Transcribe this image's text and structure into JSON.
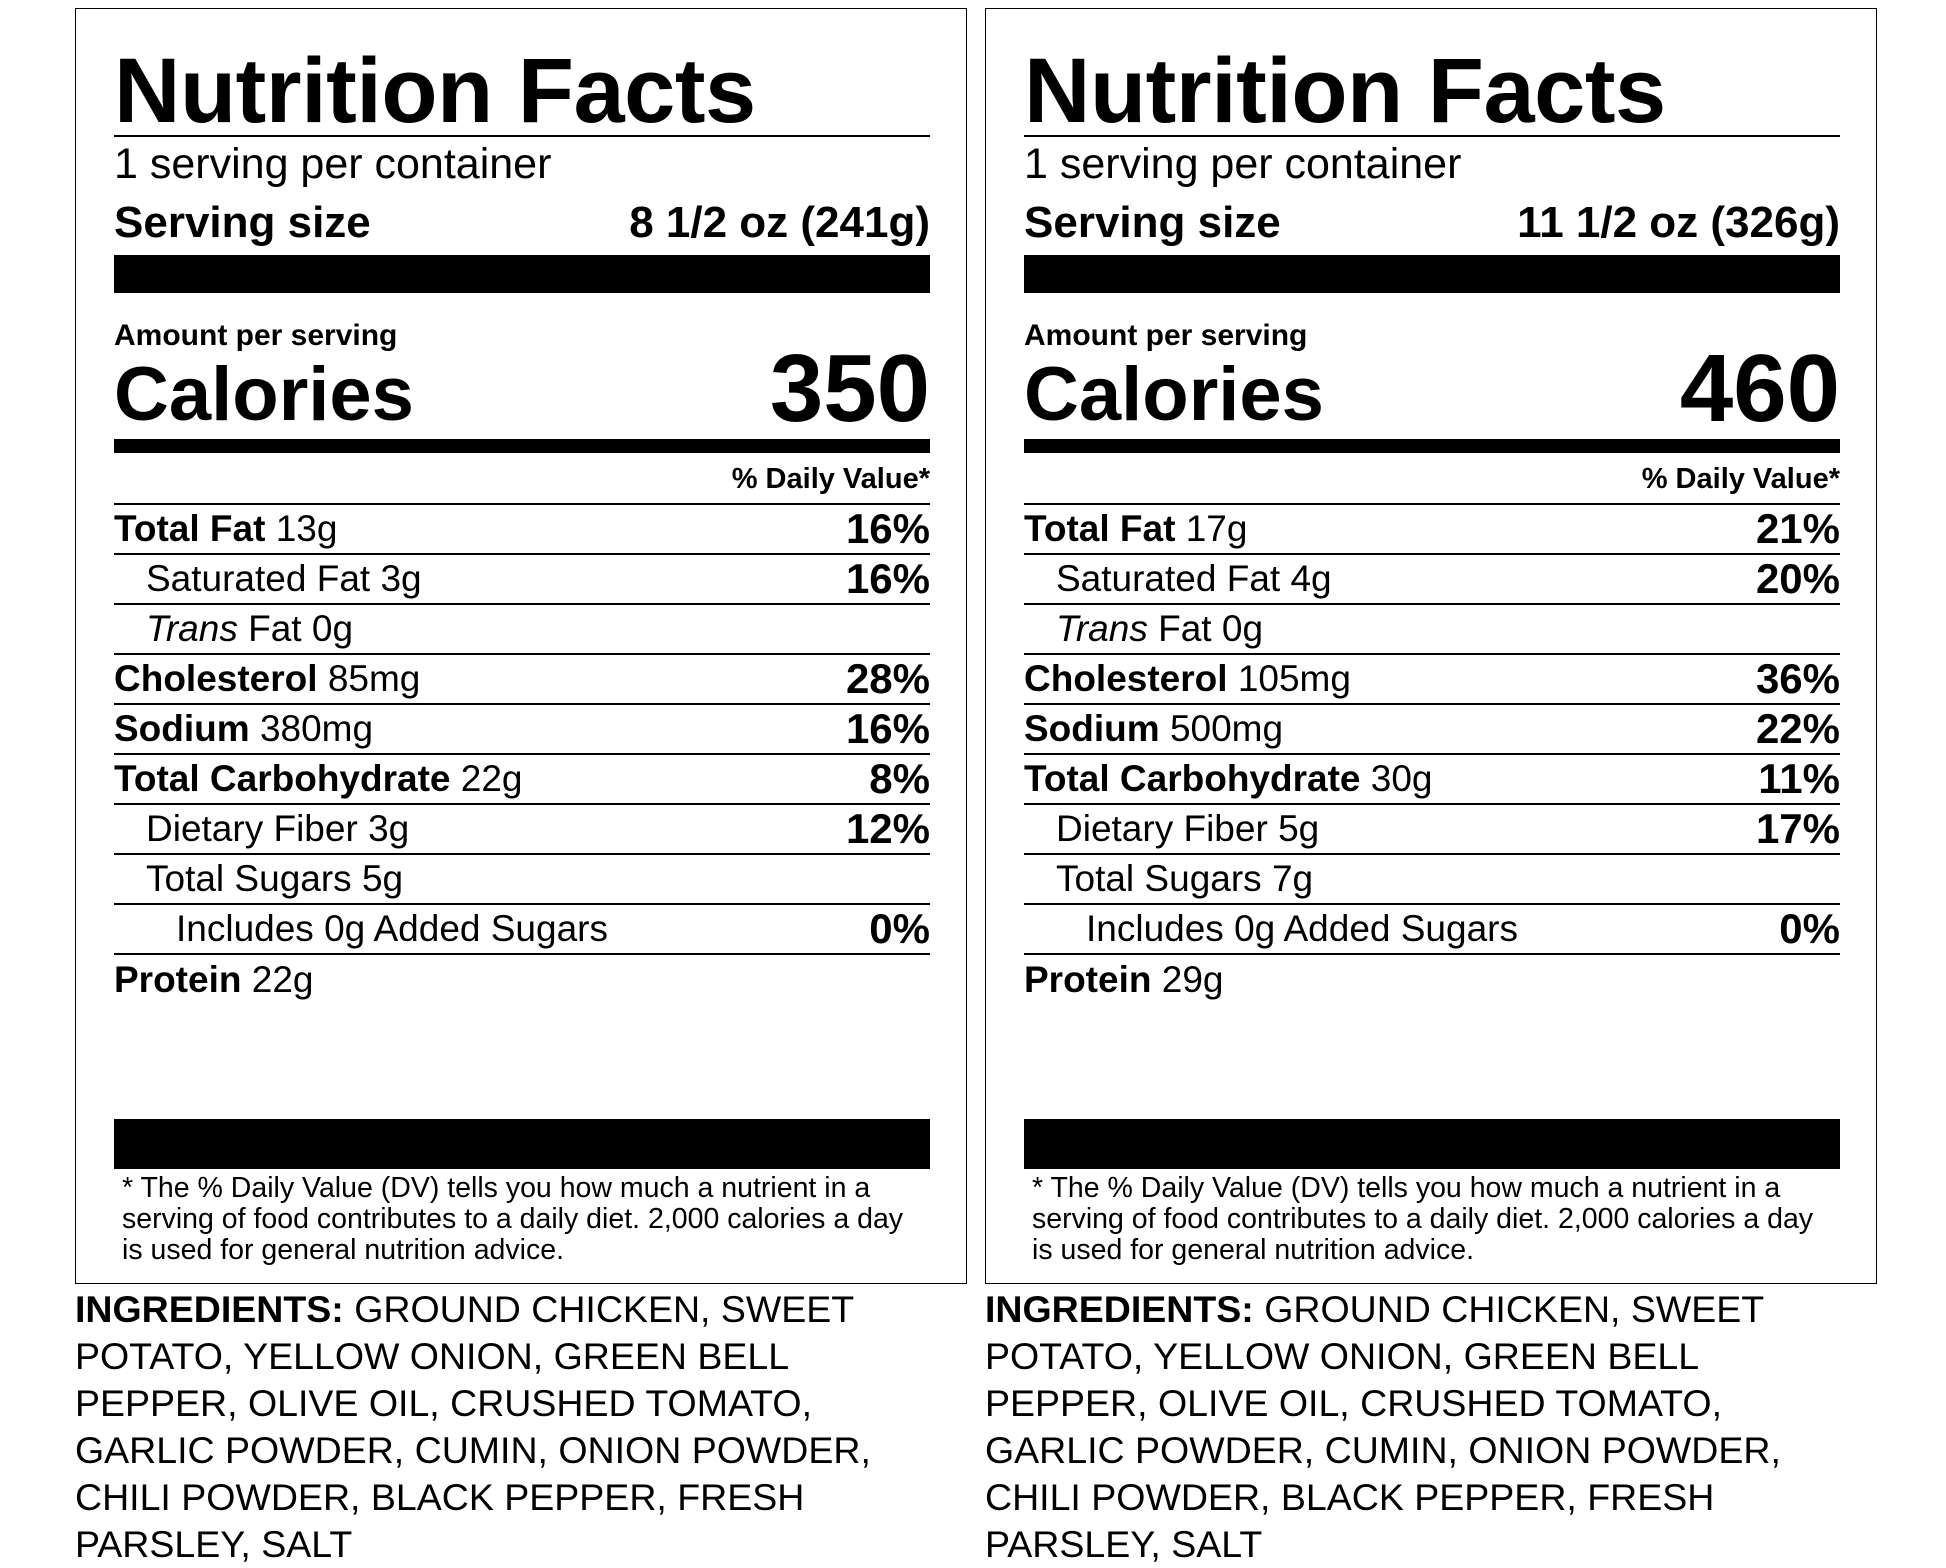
{
  "labels": [
    {
      "title": "Nutrition Facts",
      "servings_per_container": "1 serving per container",
      "serving_size_label": "Serving size",
      "serving_size_value": "8 1/2 oz (241g)",
      "amount_per_serving": "Amount per serving",
      "calories_label": "Calories",
      "calories_value": "350",
      "daily_value_header": "% Daily Value*",
      "nutrients": [
        {
          "bold": "Total Fat",
          "amount": "13g",
          "dv": "16%"
        },
        {
          "bold": "",
          "plain": "Saturated Fat",
          "amount": "3g",
          "dv": "16%"
        },
        {
          "italic": "Trans",
          "plain": "Fat",
          "amount": "0g",
          "dv": ""
        },
        {
          "bold": "Cholesterol",
          "amount": "85mg",
          "dv": "28%"
        },
        {
          "bold": "Sodium",
          "amount": "380mg",
          "dv": "16%"
        },
        {
          "bold": "Total Carbohydrate",
          "amount": "22g",
          "dv": "8%"
        },
        {
          "plain": "Dietary Fiber",
          "amount": "3g",
          "dv": "12%"
        },
        {
          "plain": "Total Sugars",
          "amount": "5g",
          "dv": ""
        },
        {
          "plain": "Includes 0g Added Sugars",
          "amount": "",
          "dv": "0%"
        },
        {
          "bold": "Protein",
          "amount": "22g",
          "dv": ""
        }
      ],
      "footnote": "* The % Daily Value (DV) tells you how much a nutrient in a serving of food contributes to a daily diet. 2,000 calories a day is used for general nutrition advice.",
      "ingredients_label": "INGREDIENTS:",
      "ingredients_text": "GROUND CHICKEN, SWEET POTATO, YELLOW ONION, GREEN BELL PEPPER, OLIVE OIL, CRUSHED TOMATO, GARLIC POWDER, CUMIN, ONION POWDER, CHILI POWDER, BLACK PEPPER, FRESH PARSLEY, SALT"
    },
    {
      "title": "Nutrition Facts",
      "servings_per_container": "1 serving per container",
      "serving_size_label": "Serving size",
      "serving_size_value": "11 1/2 oz (326g)",
      "amount_per_serving": "Amount per serving",
      "calories_label": "Calories",
      "calories_value": "460",
      "daily_value_header": "% Daily Value*",
      "nutrients": [
        {
          "bold": "Total Fat",
          "amount": "17g",
          "dv": "21%"
        },
        {
          "plain": "Saturated Fat",
          "amount": "4g",
          "dv": "20%"
        },
        {
          "italic": "Trans",
          "plain": "Fat",
          "amount": "0g",
          "dv": ""
        },
        {
          "bold": "Cholesterol",
          "amount": "105mg",
          "dv": "36%"
        },
        {
          "bold": "Sodium",
          "amount": "500mg",
          "dv": "22%"
        },
        {
          "bold": "Total Carbohydrate",
          "amount": "30g",
          "dv": "11%"
        },
        {
          "plain": "Dietary Fiber",
          "amount": "5g",
          "dv": "17%"
        },
        {
          "plain": "Total Sugars",
          "amount": "7g",
          "dv": ""
        },
        {
          "plain": "Includes 0g Added Sugars",
          "amount": "",
          "dv": "0%"
        },
        {
          "bold": "Protein",
          "amount": "29g",
          "dv": ""
        }
      ],
      "footnote": "* The % Daily Value (DV) tells you how much a nutrient in a serving of food contributes to a daily diet. 2,000 calories a day is used for general nutrition advice.",
      "ingredients_label": "INGREDIENTS:",
      "ingredients_text": "GROUND CHICKEN, SWEET POTATO, YELLOW ONION, GREEN BELL PEPPER, OLIVE OIL, CRUSHED TOMATO, GARLIC POWDER, CUMIN, ONION POWDER, CHILI POWDER, BLACK PEPPER, FRESH PARSLEY, SALT"
    }
  ]
}
